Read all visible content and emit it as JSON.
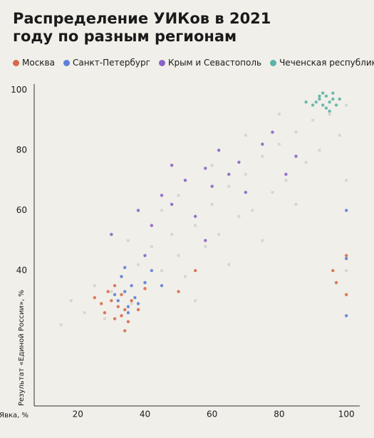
{
  "chart_data": {
    "type": "scatter",
    "title": "Распределение УИКов в 2021 году по разным регионам",
    "x_label": "Явка, %",
    "y_label": "Результат «Единой России», %",
    "xlim": [
      7,
      104
    ],
    "ylim": [
      -5,
      102
    ],
    "xticks": [
      20,
      40,
      60,
      80,
      100
    ],
    "yticks": [
      40,
      60,
      80,
      100
    ],
    "grid": false,
    "series": [
      {
        "color": "#d3d3d3",
        "x": [
          15,
          18,
          22,
          25,
          28,
          30,
          33,
          36,
          38,
          40,
          42,
          45,
          48,
          50,
          52,
          55,
          58,
          60,
          62,
          65,
          68,
          70,
          72,
          75,
          78,
          80,
          82,
          85,
          88,
          90,
          92,
          95,
          98,
          100,
          100,
          100,
          45,
          55,
          65,
          75,
          85,
          35,
          60,
          70,
          50,
          80
        ],
        "y": [
          22,
          30,
          26,
          35,
          24,
          33,
          38,
          29,
          42,
          36,
          48,
          40,
          52,
          45,
          38,
          55,
          48,
          62,
          52,
          68,
          58,
          72,
          60,
          78,
          66,
          82,
          70,
          86,
          76,
          90,
          80,
          92,
          85,
          95,
          70,
          40,
          60,
          30,
          42,
          50,
          62,
          50,
          75,
          85,
          65,
          92
        ]
      },
      {
        "name": "Москва",
        "color": "#d9694a",
        "x": [
          28,
          30,
          31,
          32,
          33,
          34,
          35,
          29,
          36,
          27,
          33,
          31,
          38,
          25,
          34,
          40,
          100,
          100,
          96,
          97,
          55,
          50
        ],
        "y": [
          26,
          30,
          24,
          28,
          32,
          27,
          23,
          33,
          30,
          29,
          25,
          35,
          27,
          31,
          20,
          34,
          45,
          32,
          40,
          36,
          40,
          33
        ]
      },
      {
        "name": "Санкт-Петербург",
        "color": "#5b80d6",
        "x": [
          32,
          34,
          35,
          36,
          33,
          37,
          38,
          35,
          31,
          40,
          42,
          34,
          100,
          100,
          100,
          45
        ],
        "y": [
          30,
          33,
          28,
          35,
          38,
          31,
          29,
          26,
          32,
          36,
          40,
          41,
          60,
          44,
          25,
          35
        ]
      },
      {
        "name": "Крым и Севастополь",
        "color": "#8a63c9",
        "x": [
          30,
          38,
          42,
          45,
          48,
          52,
          55,
          58,
          60,
          62,
          65,
          68,
          70,
          75,
          78,
          82,
          85,
          48,
          40,
          58
        ],
        "y": [
          52,
          60,
          55,
          65,
          62,
          70,
          58,
          74,
          68,
          80,
          72,
          76,
          66,
          82,
          86,
          72,
          78,
          75,
          45,
          50
        ]
      },
      {
        "name": "Чеченская республика",
        "color": "#5bb3a6",
        "x": [
          91,
          92,
          93,
          94,
          95,
          96,
          97,
          94,
          92,
          96,
          98,
          90,
          95,
          88,
          93
        ],
        "y": [
          96,
          97,
          95,
          98,
          96,
          97,
          95,
          94,
          98,
          99,
          97,
          95,
          93,
          96,
          99
        ]
      }
    ]
  }
}
